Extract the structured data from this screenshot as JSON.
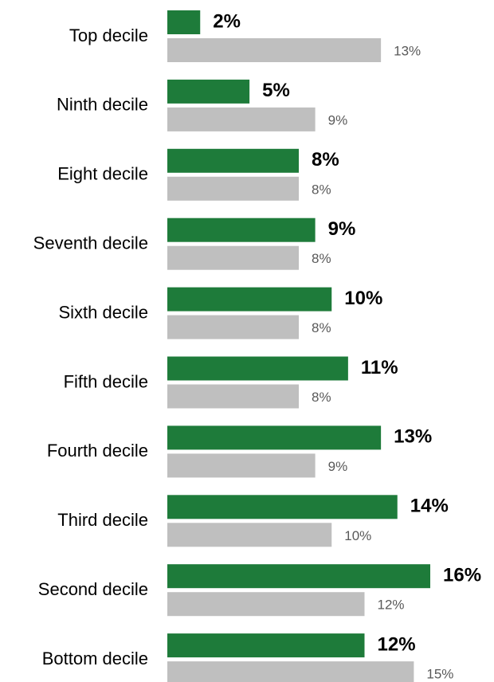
{
  "chart_data": {
    "type": "bar",
    "orientation": "horizontal",
    "categories": [
      "Top decile",
      "Ninth decile",
      "Eight decile",
      "Seventh decile",
      "Sixth decile",
      "Fifth decile",
      "Fourth decile",
      "Third decile",
      "Second decile",
      "Bottom decile"
    ],
    "series": [
      {
        "color": "#1e7b3a",
        "values": [
          2,
          5,
          8,
          9,
          10,
          11,
          13,
          14,
          16,
          12
        ],
        "labels": [
          "2%",
          "5%",
          "8%",
          "9%",
          "10%",
          "11%",
          "13%",
          "14%",
          "16%",
          "12%"
        ]
      },
      {
        "color": "#bfbfbf",
        "values": [
          13,
          9,
          8,
          8,
          8,
          8,
          9,
          10,
          12,
          15
        ],
        "labels": [
          "13%",
          "9%",
          "8%",
          "8%",
          "8%",
          "8%",
          "9%",
          "10%",
          "12%",
          "15%"
        ]
      }
    ],
    "title": "",
    "xlabel": "",
    "ylabel": "",
    "grid": false,
    "legend": "none",
    "xlim": [
      0,
      16
    ]
  }
}
